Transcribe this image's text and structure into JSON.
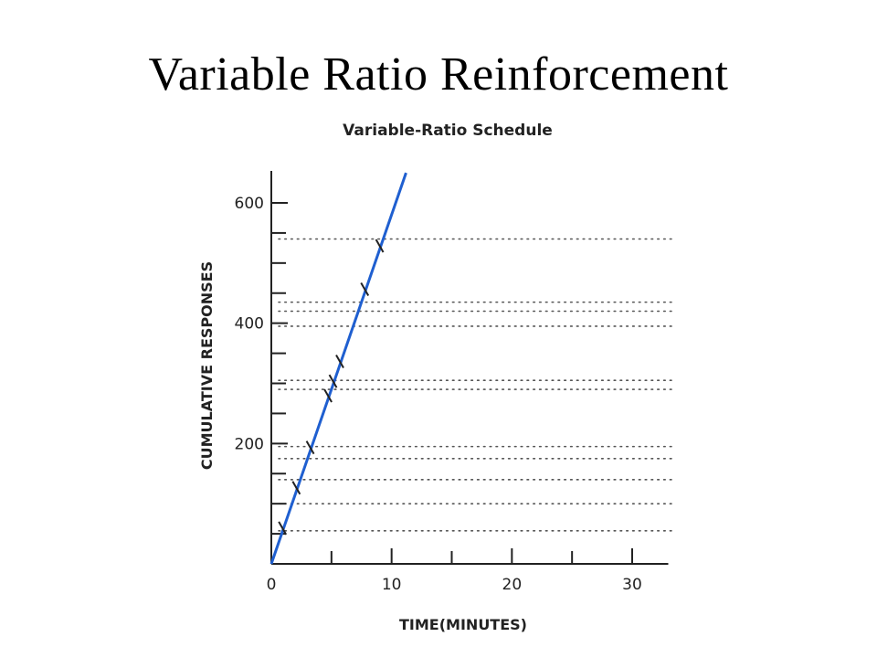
{
  "slide": {
    "title": "Variable Ratio Reinforcement"
  },
  "chart_data": {
    "type": "line",
    "title": "Variable-Ratio Schedule",
    "xlabel": "TIME(MINUTES)",
    "ylabel": "CUMULATIVE RESPONSES",
    "xlim": [
      0,
      33
    ],
    "ylim": [
      0,
      600
    ],
    "x_ticks_major": [
      0,
      10,
      20,
      30
    ],
    "x_tick_labels": [
      "0",
      "10",
      "20",
      "30"
    ],
    "x_ticks_minor": [
      5,
      15,
      25
    ],
    "y_ticks_major": [
      200,
      400,
      600
    ],
    "y_tick_labels": [
      "200",
      "400",
      "600"
    ],
    "y_ticks_minor": [
      50,
      100,
      150,
      250,
      300,
      350,
      450,
      500,
      550
    ],
    "grid": false,
    "series": [
      {
        "color": "#1f5fd0",
        "x": [
          0,
          11.2
        ],
        "y": [
          0,
          650
        ]
      }
    ],
    "reinforcement_marks": {
      "y": [
        58,
        125,
        192,
        278,
        302,
        335,
        455,
        527
      ]
    },
    "reference_lines": {
      "style": "dotted",
      "y": [
        55,
        100,
        140,
        175,
        195,
        290,
        305,
        395,
        420,
        435,
        540
      ]
    }
  }
}
